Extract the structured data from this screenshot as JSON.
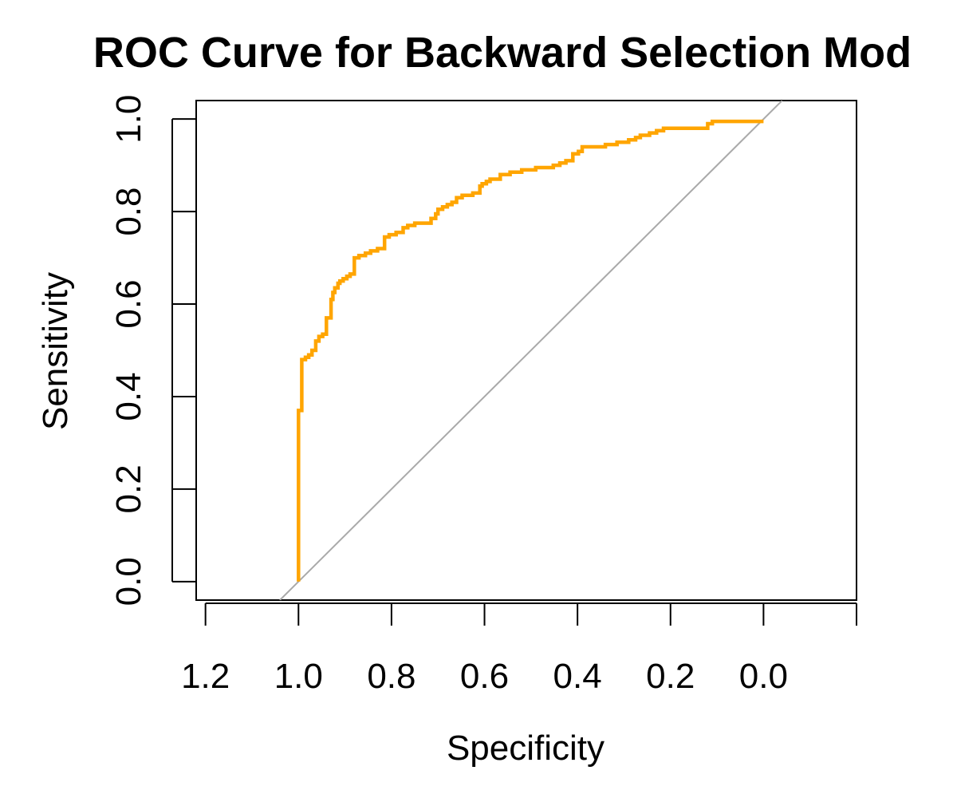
{
  "chart_data": {
    "type": "line",
    "title": "ROC Curve for Backward Selection Mod",
    "xlabel": "Specificity",
    "ylabel": "Sensitivity",
    "x_reversed": true,
    "xlim": [
      1.22,
      -0.2
    ],
    "ylim": [
      -0.04,
      1.04
    ],
    "xticks": [
      1.2,
      1.0,
      0.8,
      0.6,
      0.4,
      0.2,
      0.0
    ],
    "xtick_labels": [
      "1.2",
      "1.0",
      "0.8",
      "0.6",
      "0.4",
      "0.2",
      "0.0"
    ],
    "yticks": [
      0.0,
      0.2,
      0.4,
      0.6,
      0.8,
      1.0
    ],
    "ytick_labels": [
      "0.0",
      "0.2",
      "0.4",
      "0.6",
      "0.8",
      "1.0"
    ],
    "grid": false,
    "series": [
      {
        "color": "#FFA500",
        "x": [
          1.0,
          1.0,
          0.993,
          0.993,
          0.985,
          0.978,
          0.971,
          0.963,
          0.956,
          0.948,
          0.94,
          0.93,
          0.926,
          0.922,
          0.915,
          0.911,
          0.904,
          0.896,
          0.889,
          0.88,
          0.87,
          0.863,
          0.856,
          0.845,
          0.83,
          0.815,
          0.805,
          0.79,
          0.775,
          0.765,
          0.75,
          0.73,
          0.715,
          0.705,
          0.7,
          0.69,
          0.68,
          0.67,
          0.66,
          0.648,
          0.625,
          0.61,
          0.605,
          0.596,
          0.588,
          0.566,
          0.545,
          0.52,
          0.49,
          0.47,
          0.452,
          0.438,
          0.425,
          0.41,
          0.398,
          0.39,
          0.37,
          0.34,
          0.315,
          0.29,
          0.275,
          0.265,
          0.245,
          0.23,
          0.215,
          0.185,
          0.16,
          0.12,
          0.11,
          0.08,
          0.0
        ],
        "y": [
          0.0,
          0.37,
          0.38,
          0.48,
          0.485,
          0.49,
          0.5,
          0.52,
          0.53,
          0.535,
          0.57,
          0.61,
          0.625,
          0.635,
          0.645,
          0.65,
          0.655,
          0.66,
          0.665,
          0.7,
          0.705,
          0.705,
          0.71,
          0.715,
          0.72,
          0.745,
          0.75,
          0.755,
          0.765,
          0.77,
          0.775,
          0.775,
          0.785,
          0.795,
          0.805,
          0.81,
          0.815,
          0.82,
          0.83,
          0.835,
          0.84,
          0.855,
          0.86,
          0.865,
          0.87,
          0.88,
          0.885,
          0.89,
          0.895,
          0.895,
          0.9,
          0.905,
          0.91,
          0.925,
          0.93,
          0.94,
          0.94,
          0.945,
          0.95,
          0.955,
          0.96,
          0.965,
          0.97,
          0.975,
          0.98,
          0.98,
          0.98,
          0.99,
          0.995,
          0.995,
          0.995
        ]
      },
      {
        "type": "reference-diagonal",
        "color": "#A9A9A9",
        "x": [
          1.04,
          -0.04
        ],
        "y": [
          -0.04,
          1.04
        ]
      }
    ]
  }
}
